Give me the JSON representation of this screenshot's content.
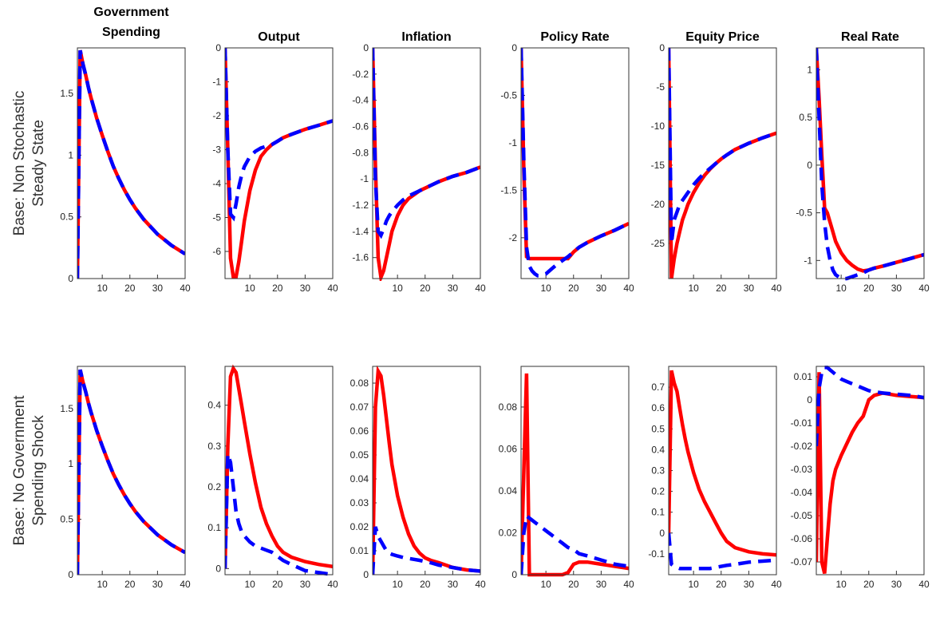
{
  "chart_data": [
    {
      "type": "line",
      "title": [
        "Government",
        "Spending"
      ],
      "ylabel": [
        "Base: Non Stochastic",
        "Steady State"
      ],
      "x": [
        1,
        2,
        3,
        4,
        5,
        6,
        7,
        8,
        10,
        12,
        14,
        16,
        18,
        20,
        22,
        25,
        30,
        35,
        40
      ],
      "xlim": [
        1,
        40
      ],
      "xticks": [
        10,
        20,
        30,
        40
      ],
      "ylim": [
        0,
        1.87
      ],
      "yticks": [
        0,
        0.5,
        1,
        1.5
      ],
      "series": [
        {
          "color": "#ff0000",
          "style": "solid",
          "values": [
            0,
            1.85,
            1.74,
            1.65,
            1.55,
            1.46,
            1.38,
            1.3,
            1.16,
            1.03,
            0.91,
            0.81,
            0.72,
            0.64,
            0.57,
            0.48,
            0.36,
            0.27,
            0.2
          ]
        },
        {
          "color": "#0000ff",
          "style": "dashed",
          "values": [
            0,
            1.85,
            1.74,
            1.65,
            1.55,
            1.46,
            1.38,
            1.3,
            1.16,
            1.03,
            0.91,
            0.81,
            0.72,
            0.64,
            0.57,
            0.48,
            0.36,
            0.27,
            0.2
          ]
        }
      ]
    },
    {
      "type": "line",
      "title": "Output",
      "x": [
        1,
        2,
        3,
        4,
        5,
        6,
        7,
        8,
        10,
        12,
        14,
        16,
        18,
        20,
        22,
        25,
        30,
        35,
        40
      ],
      "xlim": [
        1,
        40
      ],
      "xticks": [
        10,
        20,
        30,
        40
      ],
      "ylim": [
        -6.8,
        0
      ],
      "yticks": [
        -6,
        -5,
        -4,
        -3,
        -2,
        -1,
        0
      ],
      "series": [
        {
          "color": "#ff0000",
          "style": "solid",
          "values": [
            0,
            -3,
            -6.2,
            -6.75,
            -6.75,
            -6.3,
            -5.7,
            -5.1,
            -4.2,
            -3.6,
            -3.2,
            -3,
            -2.85,
            -2.75,
            -2.65,
            -2.55,
            -2.4,
            -2.28,
            -2.15
          ]
        },
        {
          "color": "#0000ff",
          "style": "dashed",
          "values": [
            0,
            -3,
            -4.9,
            -5,
            -4.6,
            -4.1,
            -3.75,
            -3.5,
            -3.2,
            -3.05,
            -2.95,
            -2.9,
            -2.85,
            -2.75,
            -2.65,
            -2.55,
            -2.4,
            -2.28,
            -2.15
          ]
        }
      ]
    },
    {
      "type": "line",
      "title": "Inflation",
      "x": [
        1,
        2,
        3,
        4,
        5,
        6,
        7,
        8,
        10,
        12,
        14,
        16,
        18,
        20,
        22,
        25,
        30,
        35,
        40
      ],
      "xlim": [
        1,
        40
      ],
      "xticks": [
        10,
        20,
        30,
        40
      ],
      "ylim": [
        -1.76,
        0
      ],
      "yticks": [
        -1.6,
        -1.4,
        -1.2,
        -1,
        -0.8,
        -0.6,
        -0.4,
        -0.2,
        0
      ],
      "series": [
        {
          "color": "#ff0000",
          "style": "solid",
          "values": [
            0,
            -0.9,
            -1.6,
            -1.75,
            -1.7,
            -1.6,
            -1.5,
            -1.4,
            -1.28,
            -1.2,
            -1.15,
            -1.12,
            -1.09,
            -1.07,
            -1.05,
            -1.02,
            -0.98,
            -0.95,
            -0.91
          ]
        },
        {
          "color": "#0000ff",
          "style": "dashed",
          "values": [
            0,
            -1,
            -1.4,
            -1.43,
            -1.38,
            -1.32,
            -1.28,
            -1.25,
            -1.2,
            -1.16,
            -1.13,
            -1.11,
            -1.09,
            -1.07,
            -1.05,
            -1.02,
            -0.98,
            -0.95,
            -0.91
          ]
        }
      ]
    },
    {
      "type": "line",
      "title": "Policy Rate",
      "x": [
        1,
        2,
        3,
        4,
        5,
        6,
        7,
        8,
        10,
        12,
        14,
        16,
        18,
        20,
        22,
        25,
        30,
        35,
        40
      ],
      "xlim": [
        1,
        40
      ],
      "xticks": [
        10,
        20,
        30,
        40
      ],
      "ylim": [
        -2.43,
        0
      ],
      "yticks": [
        -2,
        -1.5,
        -1,
        -0.5,
        0
      ],
      "series": [
        {
          "color": "#ff0000",
          "style": "solid",
          "values": [
            0,
            -1.3,
            -2.2,
            -2.22,
            -2.22,
            -2.22,
            -2.22,
            -2.22,
            -2.22,
            -2.22,
            -2.22,
            -2.22,
            -2.22,
            -2.15,
            -2.1,
            -2.05,
            -1.98,
            -1.92,
            -1.85
          ]
        },
        {
          "color": "#0000ff",
          "style": "dashed",
          "values": [
            0,
            -1.2,
            -2.1,
            -2.3,
            -2.35,
            -2.38,
            -2.4,
            -2.4,
            -2.38,
            -2.33,
            -2.28,
            -2.24,
            -2.2,
            -2.15,
            -2.1,
            -2.05,
            -1.98,
            -1.92,
            -1.85
          ]
        }
      ]
    },
    {
      "type": "line",
      "title": "Equity Price",
      "x": [
        1,
        2,
        3,
        4,
        5,
        6,
        7,
        8,
        10,
        12,
        14,
        16,
        18,
        20,
        22,
        25,
        30,
        35,
        40
      ],
      "xlim": [
        1,
        40
      ],
      "xticks": [
        10,
        20,
        30,
        40
      ],
      "ylim": [
        -29.5,
        0
      ],
      "yticks": [
        -25,
        -20,
        -15,
        -10,
        -5,
        0
      ],
      "series": [
        {
          "color": "#ff0000",
          "style": "solid",
          "values": [
            0,
            -29.5,
            -27,
            -25,
            -23.5,
            -22,
            -21,
            -20,
            -18.5,
            -17.3,
            -16.3,
            -15.5,
            -14.8,
            -14.2,
            -13.7,
            -13,
            -12.2,
            -11.5,
            -10.9
          ]
        },
        {
          "color": "#0000ff",
          "style": "dashed",
          "values": [
            0,
            -25,
            -22,
            -21,
            -20,
            -19.5,
            -19,
            -18.5,
            -17.5,
            -16.7,
            -16,
            -15.4,
            -14.8,
            -14.2,
            -13.7,
            -13,
            -12.2,
            -11.5,
            -10.9
          ]
        }
      ]
    },
    {
      "type": "line",
      "title": "Real Rate",
      "x": [
        1,
        2,
        3,
        4,
        5,
        6,
        7,
        8,
        10,
        12,
        14,
        16,
        18,
        20,
        22,
        25,
        30,
        35,
        40
      ],
      "xlim": [
        1,
        40
      ],
      "xticks": [
        10,
        20,
        30,
        40
      ],
      "ylim": [
        -1.19,
        1.23
      ],
      "yticks": [
        -1,
        -0.5,
        0,
        0.5,
        1
      ],
      "series": [
        {
          "color": "#ff0000",
          "style": "solid",
          "values": [
            1.23,
            0.7,
            0.1,
            -0.45,
            -0.5,
            -0.6,
            -0.7,
            -0.8,
            -0.92,
            -1,
            -1.05,
            -1.09,
            -1.11,
            -1.1,
            -1.08,
            -1.06,
            -1.02,
            -0.98,
            -0.94
          ]
        },
        {
          "color": "#0000ff",
          "style": "dashed",
          "values": [
            1.23,
            0.5,
            -0.2,
            -0.6,
            -0.85,
            -1,
            -1.1,
            -1.15,
            -1.19,
            -1.19,
            -1.17,
            -1.15,
            -1.13,
            -1.1,
            -1.08,
            -1.06,
            -1.02,
            -0.98,
            -0.94
          ]
        }
      ]
    },
    {
      "type": "line",
      "ylabel": [
        "Base: No Government",
        "Spending Shock"
      ],
      "x": [
        1,
        2,
        3,
        4,
        5,
        6,
        7,
        8,
        10,
        12,
        14,
        16,
        18,
        20,
        22,
        25,
        30,
        35,
        40
      ],
      "xlim": [
        1,
        40
      ],
      "xticks": [
        10,
        20,
        30,
        40
      ],
      "ylim": [
        0,
        1.88
      ],
      "yticks": [
        0,
        0.5,
        1,
        1.5
      ],
      "series": [
        {
          "color": "#ff0000",
          "style": "solid",
          "values": [
            0,
            1.85,
            1.74,
            1.65,
            1.55,
            1.46,
            1.38,
            1.3,
            1.16,
            1.03,
            0.91,
            0.81,
            0.72,
            0.64,
            0.57,
            0.48,
            0.36,
            0.27,
            0.2
          ]
        },
        {
          "color": "#0000ff",
          "style": "dashed",
          "values": [
            0,
            1.85,
            1.74,
            1.65,
            1.55,
            1.46,
            1.38,
            1.3,
            1.16,
            1.03,
            0.91,
            0.81,
            0.72,
            0.64,
            0.57,
            0.48,
            0.36,
            0.27,
            0.2
          ]
        }
      ]
    },
    {
      "type": "line",
      "x": [
        1,
        2,
        3,
        4,
        5,
        6,
        7,
        8,
        10,
        12,
        14,
        16,
        18,
        20,
        22,
        25,
        30,
        35,
        40
      ],
      "xlim": [
        1,
        40
      ],
      "xticks": [
        10,
        20,
        30,
        40
      ],
      "ylim": [
        -0.015,
        0.495
      ],
      "yticks": [
        0,
        0.1,
        0.2,
        0.3,
        0.4
      ],
      "series": [
        {
          "color": "#ff0000",
          "style": "solid",
          "values": [
            0,
            0.3,
            0.47,
            0.49,
            0.48,
            0.44,
            0.4,
            0.36,
            0.28,
            0.21,
            0.15,
            0.11,
            0.08,
            0.055,
            0.04,
            0.028,
            0.017,
            0.01,
            0.005
          ]
        },
        {
          "color": "#0000ff",
          "style": "dashed",
          "values": [
            0,
            0.28,
            0.26,
            0.2,
            0.14,
            0.11,
            0.09,
            0.08,
            0.065,
            0.055,
            0.05,
            0.045,
            0.04,
            0.03,
            0.02,
            0.01,
            -0.005,
            -0.01,
            -0.015
          ]
        }
      ]
    },
    {
      "type": "line",
      "x": [
        1,
        2,
        3,
        4,
        5,
        6,
        7,
        8,
        10,
        12,
        14,
        16,
        18,
        20,
        22,
        25,
        30,
        35,
        40
      ],
      "xlim": [
        1,
        40
      ],
      "xticks": [
        10,
        20,
        30,
        40
      ],
      "ylim": [
        0,
        0.087
      ],
      "yticks": [
        0,
        0.01,
        0.02,
        0.03,
        0.04,
        0.05,
        0.06,
        0.07,
        0.08
      ],
      "series": [
        {
          "color": "#ff0000",
          "style": "solid",
          "values": [
            0,
            0.07,
            0.085,
            0.083,
            0.075,
            0.065,
            0.055,
            0.046,
            0.033,
            0.024,
            0.017,
            0.012,
            0.009,
            0.007,
            0.006,
            0.005,
            0.003,
            0.002,
            0.0015
          ]
        },
        {
          "color": "#0000ff",
          "style": "dashed",
          "values": [
            0,
            0.02,
            0.016,
            0.014,
            0.012,
            0.01,
            0.009,
            0.0085,
            0.0078,
            0.0072,
            0.0068,
            0.0064,
            0.006,
            0.0055,
            0.005,
            0.004,
            0.003,
            0.002,
            0.0015
          ]
        }
      ]
    },
    {
      "type": "line",
      "x": [
        1,
        2,
        3,
        4,
        5,
        6,
        7,
        8,
        10,
        12,
        14,
        16,
        18,
        20,
        22,
        25,
        30,
        35,
        40
      ],
      "xlim": [
        1,
        40
      ],
      "xticks": [
        10,
        20,
        30,
        40
      ],
      "ylim": [
        0,
        0.0994
      ],
      "yticks": [
        0,
        0.02,
        0.04,
        0.06,
        0.08
      ],
      "series": [
        {
          "color": "#ff0000",
          "style": "solid",
          "values": [
            0,
            0.05,
            0.096,
            0,
            0,
            0,
            0,
            0,
            0,
            0,
            0,
            0,
            0.001,
            0.005,
            0.006,
            0.006,
            0.005,
            0.004,
            0.003
          ]
        },
        {
          "color": "#0000ff",
          "style": "dashed",
          "values": [
            0,
            0.02,
            0.028,
            0.027,
            0.026,
            0.025,
            0.024,
            0.023,
            0.021,
            0.019,
            0.017,
            0.015,
            0.013,
            0.012,
            0.01,
            0.009,
            0.007,
            0.005,
            0.004
          ]
        }
      ]
    },
    {
      "type": "line",
      "x": [
        1,
        2,
        3,
        4,
        5,
        6,
        7,
        8,
        10,
        12,
        14,
        16,
        18,
        20,
        22,
        25,
        30,
        35,
        40
      ],
      "xlim": [
        1,
        40
      ],
      "xticks": [
        10,
        20,
        30,
        40
      ],
      "ylim": [
        -0.2,
        0.8
      ],
      "yticks": [
        -0.1,
        0,
        0.1,
        0.2,
        0.3,
        0.4,
        0.5,
        0.6,
        0.7
      ],
      "series": [
        {
          "color": "#ff0000",
          "style": "solid",
          "values": [
            0,
            0.78,
            0.72,
            0.68,
            0.6,
            0.52,
            0.45,
            0.39,
            0.29,
            0.21,
            0.15,
            0.1,
            0.05,
            0,
            -0.04,
            -0.07,
            -0.09,
            -0.1,
            -0.105
          ]
        },
        {
          "color": "#0000ff",
          "style": "dashed",
          "values": [
            0,
            -0.15,
            -0.16,
            -0.165,
            -0.17,
            -0.17,
            -0.17,
            -0.17,
            -0.17,
            -0.17,
            -0.17,
            -0.17,
            -0.165,
            -0.16,
            -0.155,
            -0.15,
            -0.14,
            -0.135,
            -0.13
          ]
        }
      ]
    },
    {
      "type": "line",
      "x": [
        1,
        2,
        3,
        4,
        5,
        6,
        7,
        8,
        10,
        12,
        14,
        16,
        18,
        20,
        22,
        25,
        30,
        35,
        40
      ],
      "xlim": [
        1,
        40
      ],
      "xticks": [
        10,
        20,
        30,
        40
      ],
      "ylim": [
        -0.0755,
        0.0145
      ],
      "yticks": [
        -0.07,
        -0.06,
        -0.05,
        -0.04,
        -0.03,
        -0.02,
        -0.01,
        0,
        0.01
      ],
      "series": [
        {
          "color": "#ff0000",
          "style": "solid",
          "values": [
            -0.07,
            0.012,
            -0.07,
            -0.075,
            -0.06,
            -0.045,
            -0.035,
            -0.03,
            -0.024,
            -0.019,
            -0.014,
            -0.01,
            -0.007,
            0,
            0.002,
            0.003,
            0.002,
            0.0015,
            0.001
          ]
        },
        {
          "color": "#0000ff",
          "style": "dashed",
          "values": [
            -0.02,
            0.005,
            0.012,
            0.014,
            0.014,
            0.013,
            0.012,
            0.011,
            0.009,
            0.008,
            0.007,
            0.006,
            0.005,
            0.004,
            0.0035,
            0.003,
            0.0025,
            0.002,
            0.001
          ]
        }
      ]
    }
  ]
}
